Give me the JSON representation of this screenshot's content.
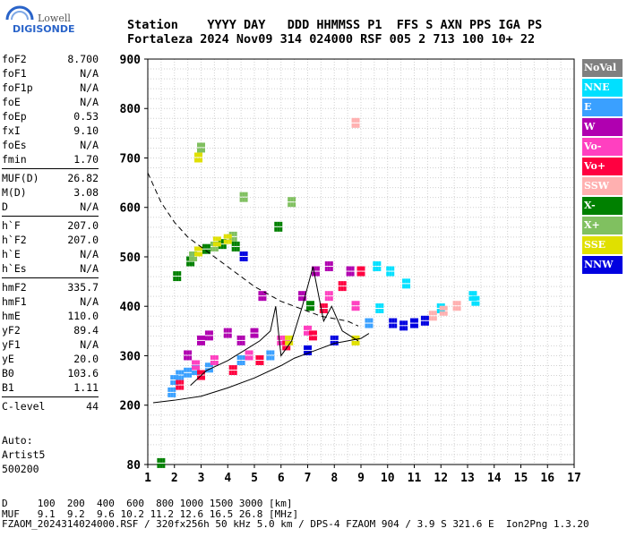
{
  "logo": {
    "line1": "Lowell",
    "line2": "DIGISONDE"
  },
  "header": {
    "line1": "Station    YYYY DAY   DDD HHMMSS P1  FFS S AXN PPS IGA PS",
    "line2": "Fortaleza 2024 Nov09 314 024000 RSF 005 2 713 100 10+ 22"
  },
  "params": {
    "group1": [
      [
        "foF2",
        "8.700"
      ],
      [
        "foF1",
        "N/A"
      ],
      [
        "foF1p",
        "N/A"
      ],
      [
        "foE",
        "N/A"
      ],
      [
        "foEp",
        "0.53"
      ],
      [
        "fxI",
        "9.10"
      ],
      [
        "foEs",
        "N/A"
      ],
      [
        "fmin",
        "1.70"
      ]
    ],
    "group2": [
      [
        "MUF(D)",
        "26.82"
      ],
      [
        "M(D)",
        "3.08"
      ],
      [
        "D",
        "N/A"
      ]
    ],
    "group3": [
      [
        "h`F",
        "207.0"
      ],
      [
        "h`F2",
        "207.0"
      ],
      [
        "h`E",
        "N/A"
      ],
      [
        "h`Es",
        "N/A"
      ]
    ],
    "group4": [
      [
        "hmF2",
        "335.7"
      ],
      [
        "hmF1",
        "N/A"
      ],
      [
        "hmE",
        "110.0"
      ],
      [
        "yF2",
        "89.4"
      ],
      [
        "yF1",
        "N/A"
      ],
      [
        "yE",
        "20.0"
      ],
      [
        "B0",
        "103.6"
      ],
      [
        "B1",
        "1.11"
      ]
    ],
    "group5": [
      [
        "C-level",
        "44"
      ]
    ]
  },
  "auto": {
    "l1": "Auto:",
    "l2": "Artist5",
    "l3": "500200"
  },
  "footer": {
    "l1": "D     100  200  400  600  800 1000 1500 3000 [km]",
    "l2": "MUF   9.1  9.2  9.6 10.2 11.2 12.6 16.5 26.8 [MHz]",
    "l3": "FZAOM_2024314024000.RSF / 320fx256h 50 kHz 5.0 km / DPS-4 FZAOM 904 / 3.9 S 321.6 E  Ion2Png 1.3.20"
  },
  "legend": [
    {
      "label": "NoVal",
      "color": "#808080"
    },
    {
      "label": "NNE",
      "color": "#00e0ff"
    },
    {
      "label": "E",
      "color": "#3aa0ff"
    },
    {
      "label": "W",
      "color": "#b000b0"
    },
    {
      "label": "Vo-",
      "color": "#ff40c0"
    },
    {
      "label": "Vo+",
      "color": "#ff0040"
    },
    {
      "label": "SSW",
      "color": "#ffb0b0"
    },
    {
      "label": "X-",
      "color": "#008000"
    },
    {
      "label": "X+",
      "color": "#80c060"
    },
    {
      "label": "SSE",
      "color": "#e0e000"
    },
    {
      "label": "NNW",
      "color": "#0000e0"
    }
  ],
  "chart_data": {
    "type": "scatter",
    "xlabel": "",
    "ylabel": "",
    "xlim": [
      1,
      17
    ],
    "ylim": [
      80,
      900
    ],
    "xticks": [
      1,
      2,
      3,
      4,
      5,
      6,
      7,
      8,
      9,
      10,
      11,
      12,
      13,
      14,
      15,
      16,
      17
    ],
    "yticks": [
      80,
      200,
      300,
      400,
      500,
      600,
      700,
      800,
      900
    ],
    "grid": true,
    "series": [
      {
        "name": "NNE",
        "color": "#00e0ff",
        "points": [
          [
            9.6,
            480
          ],
          [
            10.1,
            470
          ],
          [
            10.7,
            445
          ],
          [
            12.0,
            395
          ],
          [
            13.2,
            420
          ],
          [
            13.3,
            410
          ],
          [
            9.7,
            395
          ]
        ]
      },
      {
        "name": "E",
        "color": "#3aa0ff",
        "points": [
          [
            1.9,
            225
          ],
          [
            2.0,
            250
          ],
          [
            2.2,
            260
          ],
          [
            2.5,
            265
          ],
          [
            2.8,
            270
          ],
          [
            3.3,
            275
          ],
          [
            4.5,
            290
          ],
          [
            5.6,
            300
          ],
          [
            9.3,
            365
          ]
        ]
      },
      {
        "name": "W",
        "color": "#b000b0",
        "points": [
          [
            2.5,
            300
          ],
          [
            3.0,
            330
          ],
          [
            3.3,
            340
          ],
          [
            4.0,
            345
          ],
          [
            4.5,
            330
          ],
          [
            5.0,
            345
          ],
          [
            5.3,
            420
          ],
          [
            6.8,
            420
          ],
          [
            7.3,
            470
          ],
          [
            7.8,
            480
          ],
          [
            8.6,
            470
          ]
        ]
      },
      {
        "name": "Vo-",
        "color": "#ff40c0",
        "points": [
          [
            2.8,
            280
          ],
          [
            3.5,
            290
          ],
          [
            4.8,
            300
          ],
          [
            6.0,
            330
          ],
          [
            7.0,
            350
          ],
          [
            7.8,
            420
          ],
          [
            8.8,
            400
          ]
        ]
      },
      {
        "name": "Vo+",
        "color": "#ff0040",
        "points": [
          [
            2.2,
            240
          ],
          [
            3.0,
            260
          ],
          [
            4.2,
            270
          ],
          [
            5.2,
            290
          ],
          [
            6.2,
            320
          ],
          [
            7.2,
            340
          ],
          [
            7.6,
            395
          ],
          [
            8.3,
            440
          ],
          [
            9.0,
            470
          ]
        ]
      },
      {
        "name": "SSW",
        "color": "#ffb0b0",
        "points": [
          [
            11.7,
            380
          ],
          [
            12.1,
            390
          ],
          [
            12.6,
            400
          ],
          [
            8.8,
            770
          ]
        ]
      },
      {
        "name": "X-",
        "color": "#008000",
        "points": [
          [
            2.1,
            460
          ],
          [
            2.6,
            490
          ],
          [
            3.2,
            515
          ],
          [
            3.8,
            525
          ],
          [
            4.3,
            520
          ],
          [
            5.9,
            560
          ],
          [
            1.5,
            82
          ],
          [
            7.1,
            400
          ]
        ]
      },
      {
        "name": "X+",
        "color": "#80c060",
        "points": [
          [
            2.7,
            500
          ],
          [
            3.5,
            520
          ],
          [
            4.2,
            540
          ],
          [
            3.0,
            720
          ],
          [
            4.6,
            620
          ],
          [
            6.4,
            610
          ]
        ]
      },
      {
        "name": "SSE",
        "color": "#e0e000",
        "points": [
          [
            2.9,
            510
          ],
          [
            3.6,
            530
          ],
          [
            4.0,
            535
          ],
          [
            2.9,
            700
          ],
          [
            8.8,
            330
          ],
          [
            6.3,
            330
          ]
        ]
      },
      {
        "name": "NNW",
        "color": "#0000e0",
        "points": [
          [
            4.6,
            500
          ],
          [
            10.2,
            365
          ],
          [
            10.6,
            360
          ],
          [
            11.0,
            365
          ],
          [
            11.4,
            370
          ],
          [
            7.0,
            310
          ],
          [
            8.0,
            330
          ]
        ]
      }
    ],
    "profile_dashed": [
      [
        1.0,
        670
      ],
      [
        1.5,
        610
      ],
      [
        2.0,
        570
      ],
      [
        2.5,
        540
      ],
      [
        3.0,
        520
      ],
      [
        3.5,
        500
      ],
      [
        4.0,
        480
      ],
      [
        4.5,
        460
      ],
      [
        5.0,
        440
      ],
      [
        5.5,
        425
      ],
      [
        6.0,
        410
      ],
      [
        6.5,
        400
      ],
      [
        7.0,
        390
      ],
      [
        7.5,
        380
      ],
      [
        8.0,
        375
      ],
      [
        8.5,
        370
      ],
      [
        8.9,
        360
      ]
    ],
    "trace_solid": [
      [
        1.2,
        205
      ],
      [
        2.0,
        210
      ],
      [
        3.0,
        218
      ],
      [
        4.0,
        235
      ],
      [
        5.0,
        255
      ],
      [
        6.0,
        280
      ],
      [
        6.5,
        295
      ],
      [
        7.0,
        305
      ],
      [
        7.5,
        315
      ],
      [
        8.0,
        325
      ],
      [
        8.5,
        330
      ],
      [
        9.0,
        335
      ],
      [
        9.3,
        345
      ]
    ],
    "trace_peaks": [
      [
        2.6,
        240
      ],
      [
        3.2,
        270
      ],
      [
        4.0,
        290
      ],
      [
        4.6,
        310
      ],
      [
        5.2,
        330
      ],
      [
        5.6,
        350
      ],
      [
        5.8,
        400
      ],
      [
        6.0,
        300
      ],
      [
        6.4,
        330
      ],
      [
        6.8,
        400
      ],
      [
        7.2,
        480
      ],
      [
        7.6,
        370
      ],
      [
        7.9,
        400
      ],
      [
        8.3,
        350
      ],
      [
        8.9,
        330
      ]
    ]
  }
}
